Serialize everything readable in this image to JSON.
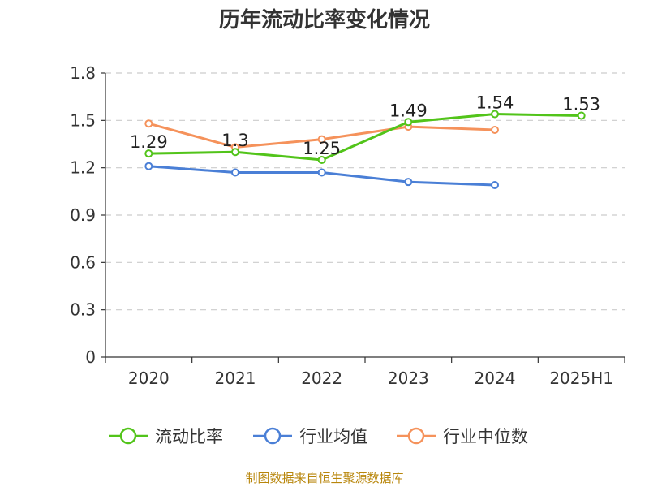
{
  "chart_data": {
    "type": "line",
    "title": "历年流动比率变化情况",
    "categories": [
      "2020",
      "2021",
      "2022",
      "2023",
      "2024",
      "2025H1"
    ],
    "ylim": [
      0,
      1.8
    ],
    "yticks": [
      "0",
      "0.3",
      "0.6",
      "0.9",
      "1.2",
      "1.5",
      "1.8"
    ],
    "grid": true,
    "legend_position": "bottom",
    "series": [
      {
        "name": "流动比率",
        "color": "#52c41a",
        "values": [
          1.29,
          1.3,
          1.25,
          1.49,
          1.54,
          1.53
        ],
        "labels": [
          "1.29",
          "1.3",
          "1.25",
          "1.49",
          "1.54",
          "1.53"
        ]
      },
      {
        "name": "行业均值",
        "color": "#4a7fd6",
        "values": [
          1.21,
          1.17,
          1.17,
          1.11,
          1.09,
          null
        ]
      },
      {
        "name": "行业中位数",
        "color": "#f5925b",
        "values": [
          1.48,
          1.33,
          1.38,
          1.46,
          1.44,
          null
        ]
      }
    ]
  },
  "source": "制图数据来自恒生聚源数据库"
}
